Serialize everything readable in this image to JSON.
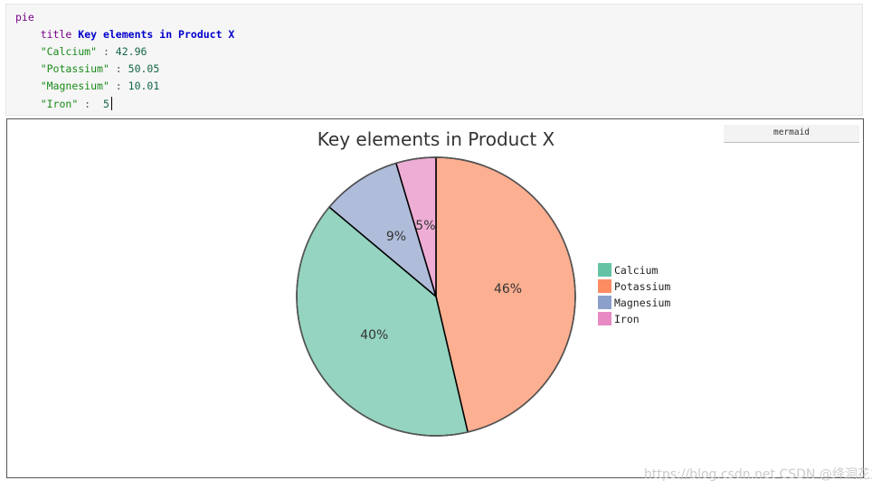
{
  "editor": {
    "keyword": "pie",
    "title_keyword": "title",
    "title_text": "Key elements in Product X",
    "entries": [
      {
        "label": "\"Calcium\"",
        "sep": " : ",
        "value": "42.96"
      },
      {
        "label": "\"Potassium\"",
        "sep": " : ",
        "value": "50.05"
      },
      {
        "label": "\"Magnesium\"",
        "sep": " : ",
        "value": "10.01"
      },
      {
        "label": "\"Iron\"",
        "sep": " :  ",
        "value": "5"
      }
    ]
  },
  "preview": {
    "badge": "mermaid"
  },
  "chart_data": {
    "type": "pie",
    "title": "Key elements in Product X",
    "categories": [
      "Calcium",
      "Potassium",
      "Magnesium",
      "Iron"
    ],
    "values": [
      42.96,
      50.05,
      10.01,
      5
    ],
    "slice_labels": [
      "40%",
      "46%",
      "9%",
      "5%"
    ],
    "colors": [
      "#66c2a5",
      "#fc8d62",
      "#8da0cb",
      "#e78ac3"
    ],
    "legend_position": "right"
  },
  "watermark": "https://blog.csdn.net CSDN @绛洞花主敏明"
}
